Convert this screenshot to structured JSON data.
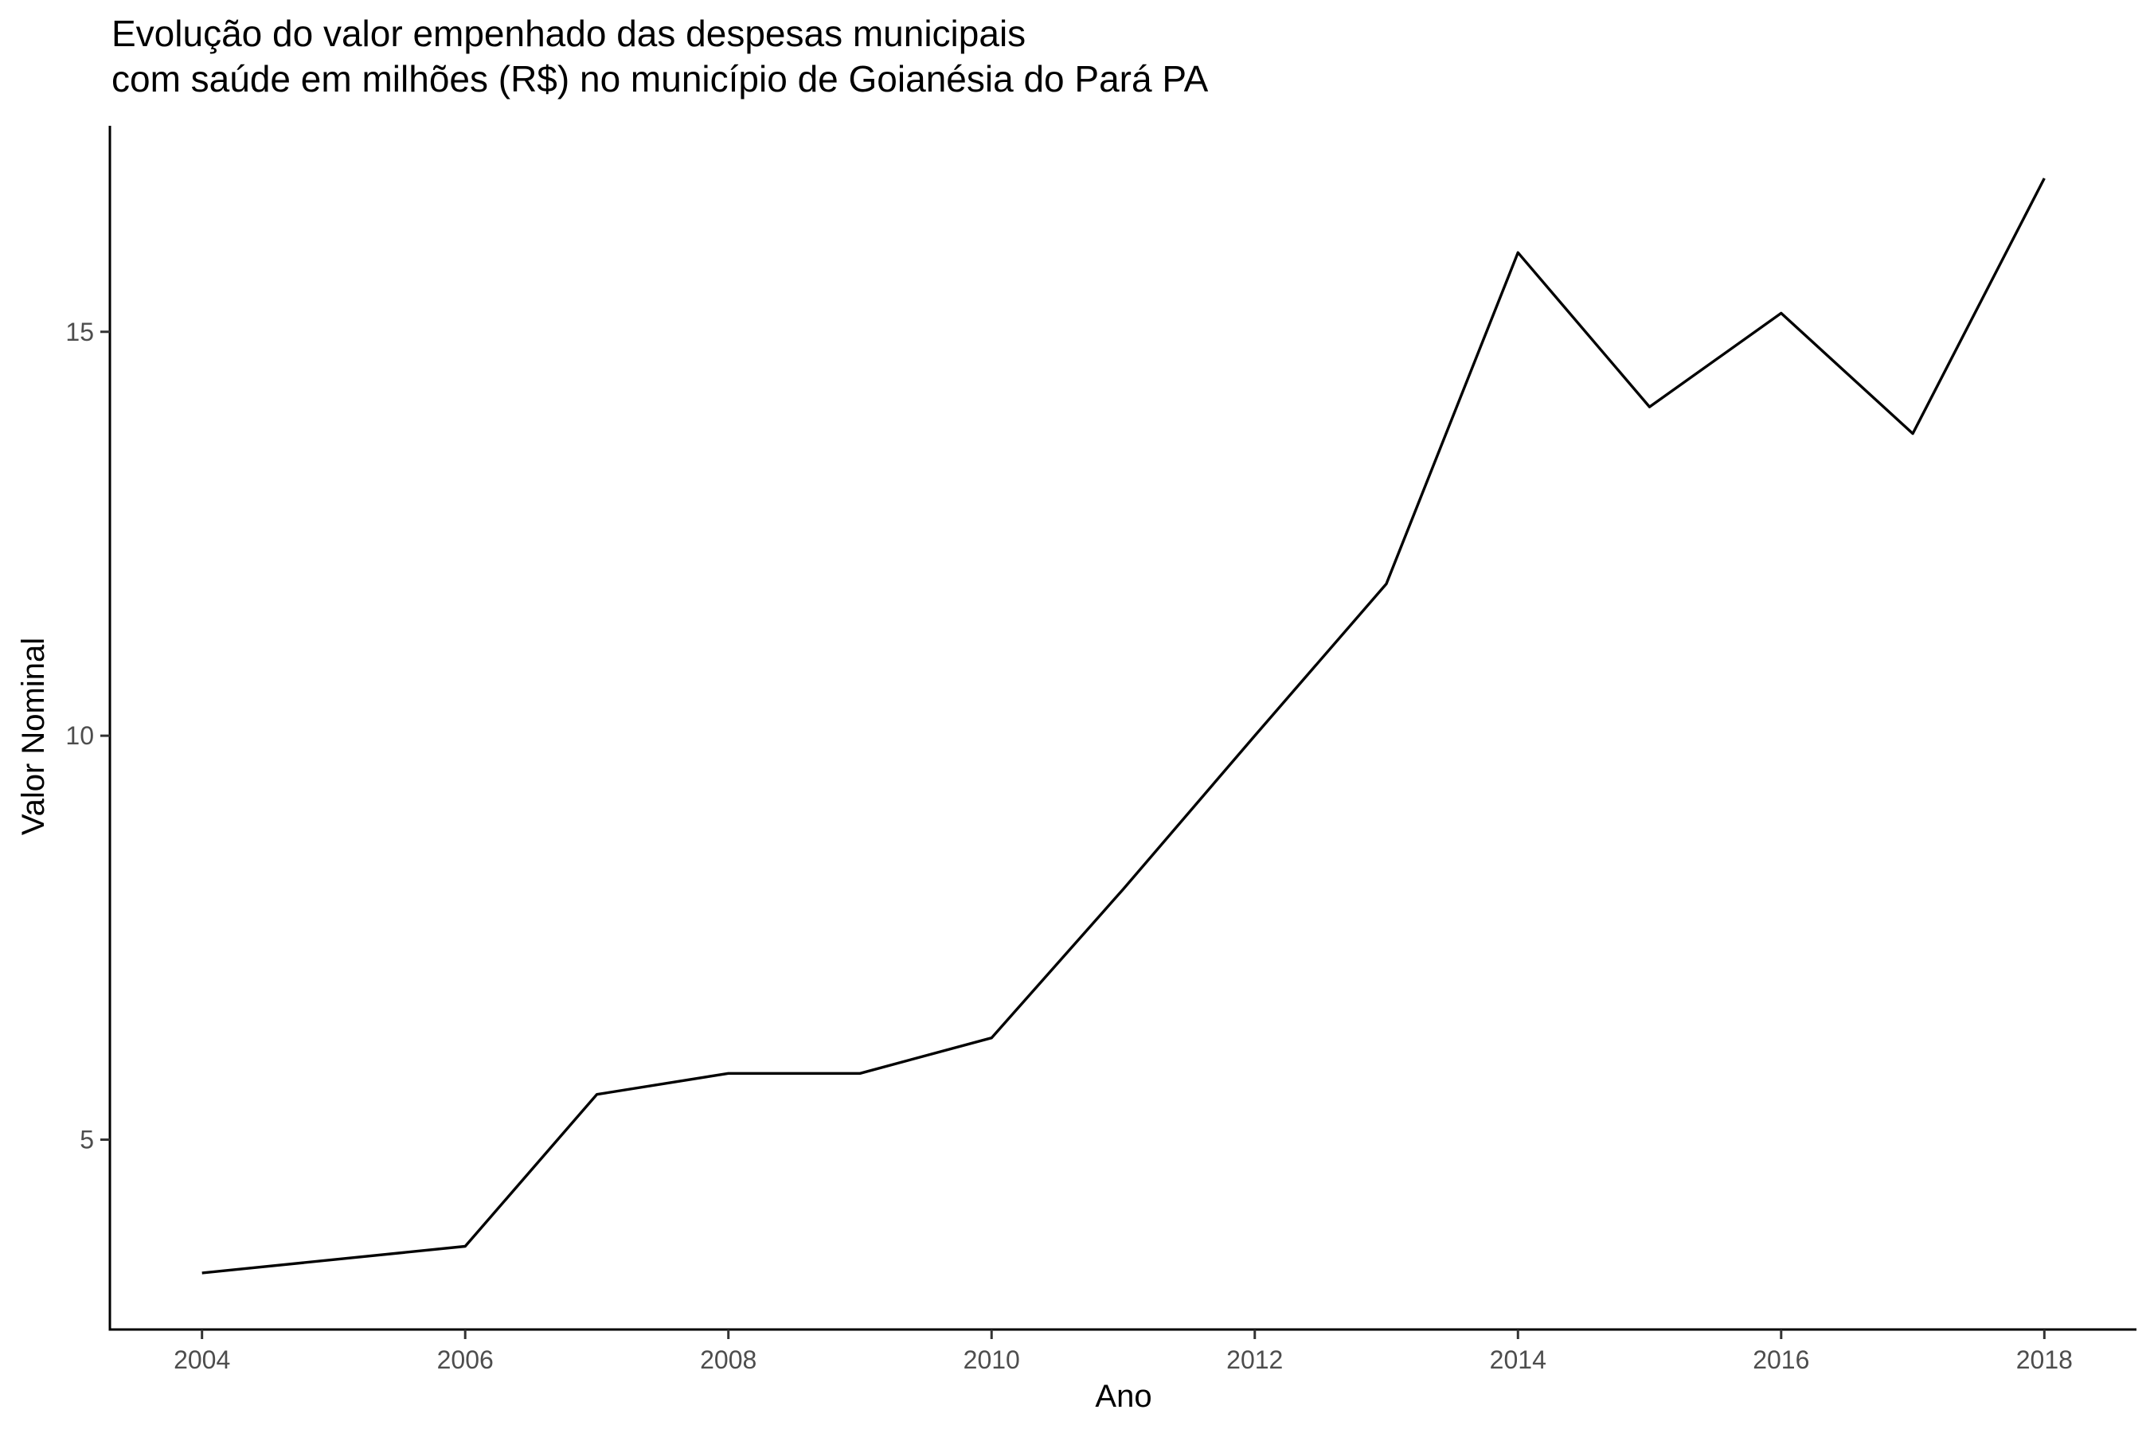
{
  "chart_data": {
    "type": "line",
    "title_lines": [
      "Evolução do valor empenhado das despesas municipais",
      "com saúde em milhões (R$) no município de Goianésia do Pará PA"
    ],
    "xlabel": "Ano",
    "ylabel": "Valor Nominal",
    "x_ticks": [
      2004,
      2006,
      2008,
      2010,
      2012,
      2014,
      2016,
      2018
    ],
    "y_ticks": [
      5,
      10,
      15
    ],
    "xlim": [
      2003.3,
      2018.7
    ],
    "ylim": [
      2.65,
      17.55
    ],
    "grid": false,
    "legend": "none",
    "line_color": "#000000",
    "series": [
      {
        "x": [
          2004,
          2006,
          2007,
          2008,
          2009,
          2010,
          2011,
          2012,
          2013,
          2014,
          2015,
          2016,
          2017,
          2018
        ],
        "values": [
          3.35,
          3.68,
          5.56,
          5.82,
          5.82,
          6.26,
          8.1,
          10.0,
          11.88,
          15.98,
          14.07,
          15.23,
          13.74,
          16.9
        ]
      }
    ]
  }
}
